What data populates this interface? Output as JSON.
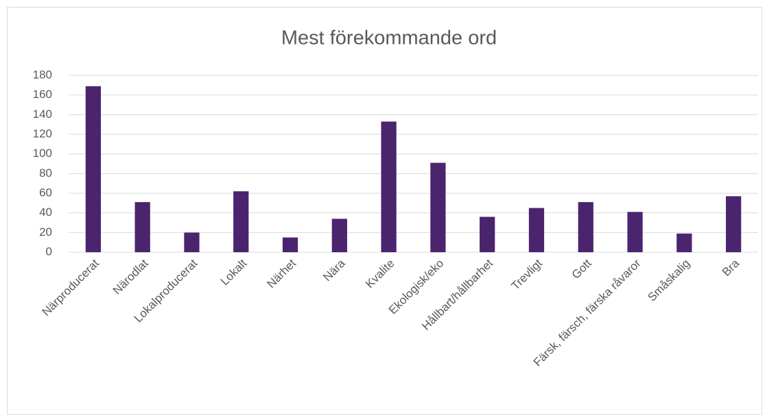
{
  "chart_data": {
    "type": "bar",
    "title": "Mest förekommande ord",
    "categories": [
      "Närproducerat",
      "Närodlat",
      "Lokalproducerat",
      "Lokalt",
      "Närhet",
      "Nära",
      "Kvalite",
      "Ekologisk/eko",
      "Hållbart/hållbarhet",
      "Trevligt",
      "Gott",
      "Färsk, färsch, färska råvaror",
      "Småskalig",
      "Bra"
    ],
    "values": [
      169,
      51,
      20,
      62,
      15,
      34,
      133,
      91,
      36,
      45,
      51,
      41,
      19,
      57
    ],
    "color": "#4b246e",
    "ylim": [
      0,
      180
    ],
    "yticks": [
      0,
      20,
      40,
      60,
      80,
      100,
      120,
      140,
      160,
      180
    ],
    "grid": true
  }
}
